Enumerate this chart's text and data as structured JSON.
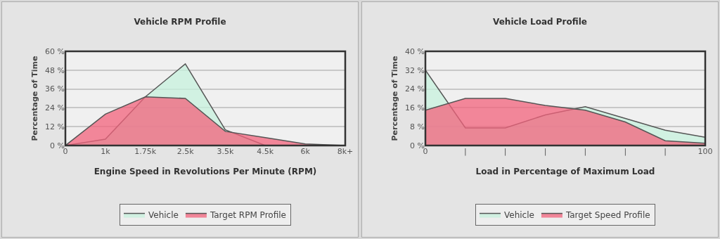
{
  "chart_data": [
    {
      "type": "area",
      "title": "Vehicle RPM Profile",
      "xlabel": "Engine Speed in Revolutions Per Minute (RPM)",
      "ylabel": "Percentage of Time",
      "categories": [
        "0",
        "1k",
        "1.75k",
        "2.5k",
        "3.5k",
        "4.5k",
        "6k",
        "8k+"
      ],
      "series": [
        {
          "name": "Vehicle",
          "color": "#c6f0dc",
          "values": [
            0,
            4,
            31,
            52,
            10,
            0,
            0,
            0
          ]
        },
        {
          "name": "Target RPM Profile",
          "color": "#f2627c",
          "values": [
            0,
            20,
            31,
            30,
            9,
            5,
            1,
            0
          ]
        }
      ],
      "ylim": [
        0,
        60
      ],
      "yticks": [
        {
          "value": 0,
          "label": "0 %"
        },
        {
          "value": 12,
          "label": "12 %"
        },
        {
          "value": 24,
          "label": "24 %"
        },
        {
          "value": 36,
          "label": "36 %"
        },
        {
          "value": 48,
          "label": "48 %"
        },
        {
          "value": 60,
          "label": "60 %"
        }
      ],
      "grid": "y",
      "legend": "bottom",
      "marker": "none"
    },
    {
      "type": "area",
      "title": "Vehicle Load Profile",
      "xlabel": "Load in Percentage of Maximum Load",
      "ylabel": "Percentage of Time",
      "categories": [
        "0",
        "|",
        "|",
        "|",
        "|",
        "|",
        "|",
        "100"
      ],
      "series": [
        {
          "name": "Vehicle",
          "color": "#c6f0dc",
          "values": [
            32,
            7.5,
            7.5,
            13,
            16.5,
            11.5,
            6.5,
            3.5
          ]
        },
        {
          "name": "Target Speed Profile",
          "color": "#f2627c",
          "values": [
            15,
            20,
            20,
            17,
            15,
            10,
            2,
            1
          ]
        }
      ],
      "ylim": [
        0,
        40
      ],
      "yticks": [
        {
          "value": 0,
          "label": "0 %"
        },
        {
          "value": 8,
          "label": "8 %"
        },
        {
          "value": 16,
          "label": "16 %"
        },
        {
          "value": 24,
          "label": "24 %"
        },
        {
          "value": 32,
          "label": "32 %"
        },
        {
          "value": 40,
          "label": "40 %"
        }
      ],
      "grid": "y",
      "legend": "bottom",
      "marker": "none"
    }
  ]
}
